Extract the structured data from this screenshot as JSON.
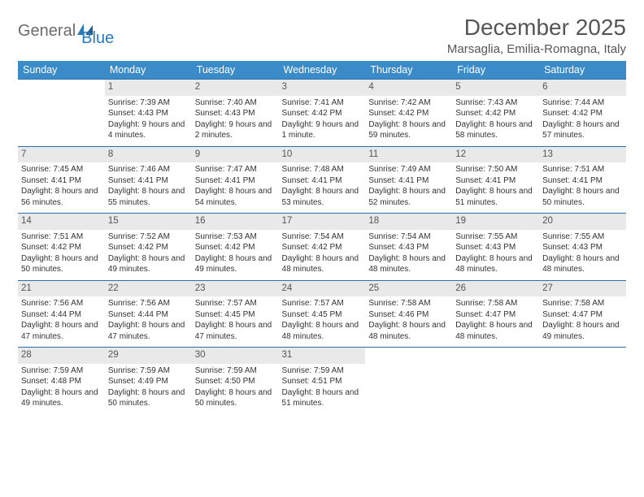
{
  "logo": {
    "word1": "General",
    "word2": "Blue"
  },
  "title": "December 2025",
  "location": "Marsaglia, Emilia-Romagna, Italy",
  "colors": {
    "header_bg": "#3b8bc9",
    "header_text": "#ffffff",
    "daynum_bg": "#e9e9e9",
    "rule": "#2b6fa8",
    "logo_gray": "#6b6b6b",
    "logo_blue": "#2b7bbc"
  },
  "day_headers": [
    "Sunday",
    "Monday",
    "Tuesday",
    "Wednesday",
    "Thursday",
    "Friday",
    "Saturday"
  ],
  "weeks": [
    [
      {
        "n": "",
        "sr": "",
        "ss": "",
        "dl": ""
      },
      {
        "n": "1",
        "sr": "Sunrise: 7:39 AM",
        "ss": "Sunset: 4:43 PM",
        "dl": "Daylight: 9 hours and 4 minutes."
      },
      {
        "n": "2",
        "sr": "Sunrise: 7:40 AM",
        "ss": "Sunset: 4:43 PM",
        "dl": "Daylight: 9 hours and 2 minutes."
      },
      {
        "n": "3",
        "sr": "Sunrise: 7:41 AM",
        "ss": "Sunset: 4:42 PM",
        "dl": "Daylight: 9 hours and 1 minute."
      },
      {
        "n": "4",
        "sr": "Sunrise: 7:42 AM",
        "ss": "Sunset: 4:42 PM",
        "dl": "Daylight: 8 hours and 59 minutes."
      },
      {
        "n": "5",
        "sr": "Sunrise: 7:43 AM",
        "ss": "Sunset: 4:42 PM",
        "dl": "Daylight: 8 hours and 58 minutes."
      },
      {
        "n": "6",
        "sr": "Sunrise: 7:44 AM",
        "ss": "Sunset: 4:42 PM",
        "dl": "Daylight: 8 hours and 57 minutes."
      }
    ],
    [
      {
        "n": "7",
        "sr": "Sunrise: 7:45 AM",
        "ss": "Sunset: 4:41 PM",
        "dl": "Daylight: 8 hours and 56 minutes."
      },
      {
        "n": "8",
        "sr": "Sunrise: 7:46 AM",
        "ss": "Sunset: 4:41 PM",
        "dl": "Daylight: 8 hours and 55 minutes."
      },
      {
        "n": "9",
        "sr": "Sunrise: 7:47 AM",
        "ss": "Sunset: 4:41 PM",
        "dl": "Daylight: 8 hours and 54 minutes."
      },
      {
        "n": "10",
        "sr": "Sunrise: 7:48 AM",
        "ss": "Sunset: 4:41 PM",
        "dl": "Daylight: 8 hours and 53 minutes."
      },
      {
        "n": "11",
        "sr": "Sunrise: 7:49 AM",
        "ss": "Sunset: 4:41 PM",
        "dl": "Daylight: 8 hours and 52 minutes."
      },
      {
        "n": "12",
        "sr": "Sunrise: 7:50 AM",
        "ss": "Sunset: 4:41 PM",
        "dl": "Daylight: 8 hours and 51 minutes."
      },
      {
        "n": "13",
        "sr": "Sunrise: 7:51 AM",
        "ss": "Sunset: 4:41 PM",
        "dl": "Daylight: 8 hours and 50 minutes."
      }
    ],
    [
      {
        "n": "14",
        "sr": "Sunrise: 7:51 AM",
        "ss": "Sunset: 4:42 PM",
        "dl": "Daylight: 8 hours and 50 minutes."
      },
      {
        "n": "15",
        "sr": "Sunrise: 7:52 AM",
        "ss": "Sunset: 4:42 PM",
        "dl": "Daylight: 8 hours and 49 minutes."
      },
      {
        "n": "16",
        "sr": "Sunrise: 7:53 AM",
        "ss": "Sunset: 4:42 PM",
        "dl": "Daylight: 8 hours and 49 minutes."
      },
      {
        "n": "17",
        "sr": "Sunrise: 7:54 AM",
        "ss": "Sunset: 4:42 PM",
        "dl": "Daylight: 8 hours and 48 minutes."
      },
      {
        "n": "18",
        "sr": "Sunrise: 7:54 AM",
        "ss": "Sunset: 4:43 PM",
        "dl": "Daylight: 8 hours and 48 minutes."
      },
      {
        "n": "19",
        "sr": "Sunrise: 7:55 AM",
        "ss": "Sunset: 4:43 PM",
        "dl": "Daylight: 8 hours and 48 minutes."
      },
      {
        "n": "20",
        "sr": "Sunrise: 7:55 AM",
        "ss": "Sunset: 4:43 PM",
        "dl": "Daylight: 8 hours and 48 minutes."
      }
    ],
    [
      {
        "n": "21",
        "sr": "Sunrise: 7:56 AM",
        "ss": "Sunset: 4:44 PM",
        "dl": "Daylight: 8 hours and 47 minutes."
      },
      {
        "n": "22",
        "sr": "Sunrise: 7:56 AM",
        "ss": "Sunset: 4:44 PM",
        "dl": "Daylight: 8 hours and 47 minutes."
      },
      {
        "n": "23",
        "sr": "Sunrise: 7:57 AM",
        "ss": "Sunset: 4:45 PM",
        "dl": "Daylight: 8 hours and 47 minutes."
      },
      {
        "n": "24",
        "sr": "Sunrise: 7:57 AM",
        "ss": "Sunset: 4:45 PM",
        "dl": "Daylight: 8 hours and 48 minutes."
      },
      {
        "n": "25",
        "sr": "Sunrise: 7:58 AM",
        "ss": "Sunset: 4:46 PM",
        "dl": "Daylight: 8 hours and 48 minutes."
      },
      {
        "n": "26",
        "sr": "Sunrise: 7:58 AM",
        "ss": "Sunset: 4:47 PM",
        "dl": "Daylight: 8 hours and 48 minutes."
      },
      {
        "n": "27",
        "sr": "Sunrise: 7:58 AM",
        "ss": "Sunset: 4:47 PM",
        "dl": "Daylight: 8 hours and 49 minutes."
      }
    ],
    [
      {
        "n": "28",
        "sr": "Sunrise: 7:59 AM",
        "ss": "Sunset: 4:48 PM",
        "dl": "Daylight: 8 hours and 49 minutes."
      },
      {
        "n": "29",
        "sr": "Sunrise: 7:59 AM",
        "ss": "Sunset: 4:49 PM",
        "dl": "Daylight: 8 hours and 50 minutes."
      },
      {
        "n": "30",
        "sr": "Sunrise: 7:59 AM",
        "ss": "Sunset: 4:50 PM",
        "dl": "Daylight: 8 hours and 50 minutes."
      },
      {
        "n": "31",
        "sr": "Sunrise: 7:59 AM",
        "ss": "Sunset: 4:51 PM",
        "dl": "Daylight: 8 hours and 51 minutes."
      },
      {
        "n": "",
        "sr": "",
        "ss": "",
        "dl": ""
      },
      {
        "n": "",
        "sr": "",
        "ss": "",
        "dl": ""
      },
      {
        "n": "",
        "sr": "",
        "ss": "",
        "dl": ""
      }
    ]
  ]
}
